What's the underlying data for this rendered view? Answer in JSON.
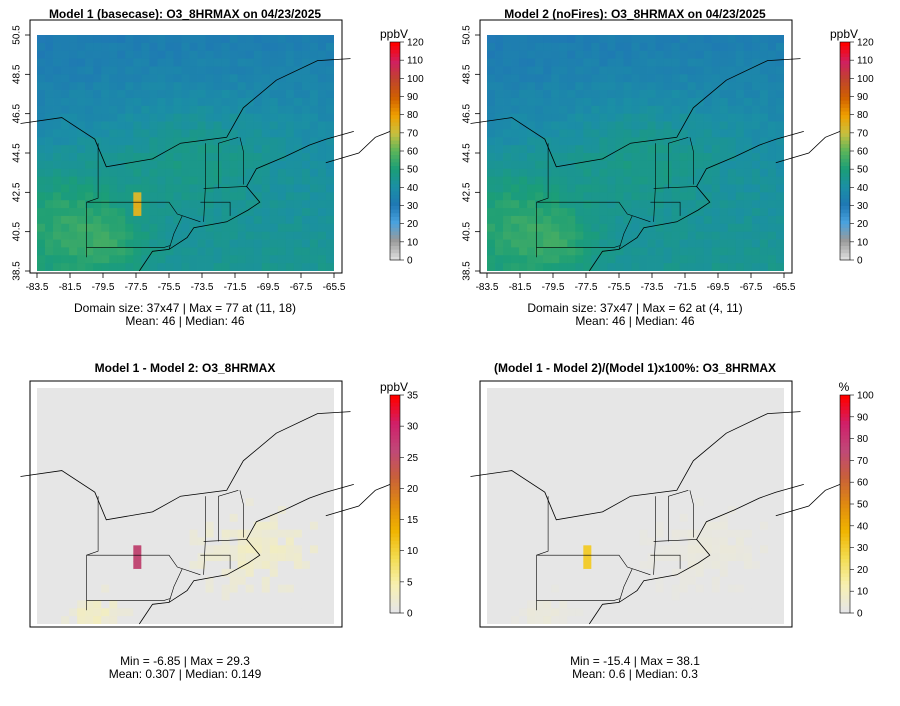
{
  "panels": [
    {
      "title": "Model 1 (basecase): O3_8HRMAX on 04/23/2025",
      "caption_line1": "Domain size: 37x47 | Max = 77 at (11, 18)",
      "caption_line2": "Mean: 46 |  Median: 46",
      "xticks": [
        "-83.5",
        "-81.5",
        "-79.5",
        "-77.5",
        "-75.5",
        "-73.5",
        "-71.5",
        "-69.5",
        "-67.5",
        "-65.5"
      ],
      "yticks": [
        "38.5",
        "40.5",
        "42.5",
        "44.5",
        "46.5",
        "48.5",
        "50.5"
      ],
      "colorbar": {
        "unit": "ppbV",
        "ticks": [
          "0",
          "10",
          "20",
          "30",
          "40",
          "50",
          "60",
          "70",
          "80",
          "90",
          "100",
          "110",
          "120"
        ],
        "colors": [
          "#dcdcdc",
          "#999999",
          "#4aa3df",
          "#1f77b4",
          "#1b9e77",
          "#5ab55a",
          "#d4c23a",
          "#f0a000",
          "#d06000",
          "#c0442c",
          "#d02060",
          "#ff0000"
        ]
      }
    },
    {
      "title": "Model 2 (noFires): O3_8HRMAX on 04/23/2025",
      "caption_line1": "Domain size: 37x47 | Max = 62 at (4, 11)",
      "caption_line2": "Mean: 46 |  Median: 46",
      "xticks": [
        "-83.5",
        "-81.5",
        "-79.5",
        "-77.5",
        "-75.5",
        "-73.5",
        "-71.5",
        "-69.5",
        "-67.5",
        "-65.5"
      ],
      "yticks": [
        "38.5",
        "40.5",
        "42.5",
        "44.5",
        "46.5",
        "48.5",
        "50.5"
      ],
      "colorbar": {
        "unit": "ppbV",
        "ticks": [
          "0",
          "10",
          "20",
          "30",
          "40",
          "50",
          "60",
          "70",
          "80",
          "90",
          "100",
          "110",
          "120"
        ],
        "colors": [
          "#dcdcdc",
          "#999999",
          "#4aa3df",
          "#1f77b4",
          "#1b9e77",
          "#5ab55a",
          "#d4c23a",
          "#f0a000",
          "#d06000",
          "#c0442c",
          "#d02060",
          "#ff0000"
        ]
      }
    },
    {
      "title": "Model 1 - Model 2: O3_8HRMAX",
      "caption_line1": "Min = -6.85 | Max = 29.3",
      "caption_line2": "Mean: 0.307 |  Median: 0.149",
      "xticks": [],
      "yticks": [],
      "colorbar": {
        "unit": "ppbV",
        "ticks": [
          "0",
          "5",
          "10",
          "15",
          "20",
          "25",
          "30",
          "35"
        ],
        "colors": [
          "#e6e6e6",
          "#f7f0b0",
          "#f3dc50",
          "#f0b400",
          "#e08a10",
          "#c8603a",
          "#c04878",
          "#d0206a",
          "#ff0000"
        ]
      }
    },
    {
      "title": "(Model 1 - Model 2)/(Model 1)x100%: O3_8HRMAX",
      "caption_line1": "Min = -15.4 | Max = 38.1",
      "caption_line2": "Mean: 0.6 |  Median: 0.3",
      "xticks": [],
      "yticks": [],
      "colorbar": {
        "unit": "%",
        "ticks": [
          "0",
          "10",
          "20",
          "30",
          "40",
          "50",
          "60",
          "70",
          "80",
          "90",
          "100"
        ],
        "colors": [
          "#e6e6e6",
          "#f7f0b0",
          "#f3dc50",
          "#f0b400",
          "#e08a10",
          "#c8603a",
          "#c04878",
          "#d0206a",
          "#ff0000"
        ]
      }
    }
  ],
  "chart_data": [
    {
      "type": "heatmap",
      "title": "Model 1 (basecase): O3_8HRMAX on 04/23/2025",
      "variable": "O3_8HRMAX",
      "unit": "ppbV",
      "xlim": [
        -83.5,
        -65.5
      ],
      "ylim": [
        38.5,
        50.5
      ],
      "color_range": [
        0,
        120
      ],
      "domain_size": "37x47",
      "max": 77,
      "max_location": [
        11,
        18
      ],
      "mean": 46,
      "median": 46
    },
    {
      "type": "heatmap",
      "title": "Model 2 (noFires): O3_8HRMAX on 04/23/2025",
      "variable": "O3_8HRMAX",
      "unit": "ppbV",
      "xlim": [
        -83.5,
        -65.5
      ],
      "ylim": [
        38.5,
        50.5
      ],
      "color_range": [
        0,
        120
      ],
      "domain_size": "37x47",
      "max": 62,
      "max_location": [
        4,
        11
      ],
      "mean": 46,
      "median": 46
    },
    {
      "type": "heatmap",
      "title": "Model 1 - Model 2: O3_8HRMAX",
      "unit": "ppbV",
      "color_range": [
        0,
        35
      ],
      "min": -6.85,
      "max": 29.3,
      "mean": 0.307,
      "median": 0.149
    },
    {
      "type": "heatmap",
      "title": "(Model 1 - Model 2)/(Model 1)x100%: O3_8HRMAX",
      "unit": "%",
      "color_range": [
        0,
        100
      ],
      "min": -15.4,
      "max": 38.1,
      "mean": 0.6,
      "median": 0.3
    }
  ]
}
